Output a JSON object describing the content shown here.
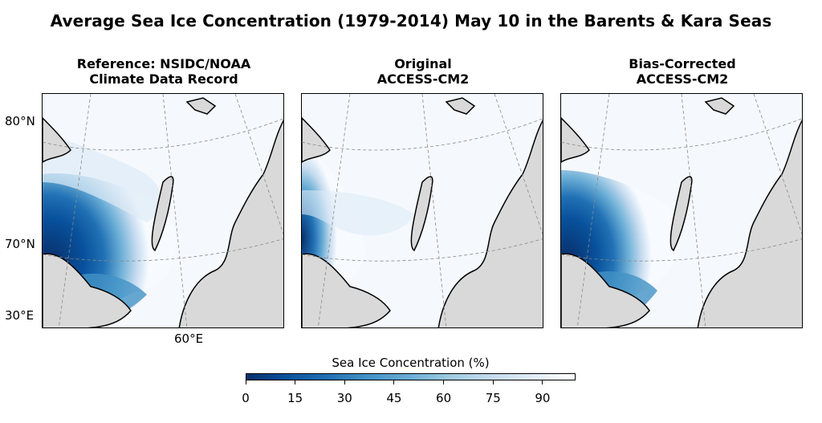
{
  "title": "Average Sea Ice Concentration (1979-2014) May 10 in the Barents & Kara Seas",
  "panels": [
    {
      "title_line1": "Reference: NSIDC/NOAA",
      "title_line2": "Climate Data Record"
    },
    {
      "title_line1": "Original",
      "title_line2": "ACCESS-CM2"
    },
    {
      "title_line1": "Bias-Corrected",
      "title_line2": "ACCESS-CM2"
    }
  ],
  "axis_labels": {
    "lat_80": "80°N",
    "lat_70": "70°N",
    "lat_30": "30°E",
    "lon_60": "60°E"
  },
  "colorbar": {
    "label": "Sea Ice Concentration (%)",
    "ticks": [
      "0",
      "15",
      "30",
      "45",
      "60",
      "75",
      "90"
    ],
    "cmap": "Blues_r",
    "range": [
      0,
      100
    ]
  },
  "colors": {
    "land": "#d9d9d9",
    "coast": "#000000",
    "open_water": "#08306b",
    "full_ice": "#f7fbff",
    "graticule": "#888888"
  }
}
